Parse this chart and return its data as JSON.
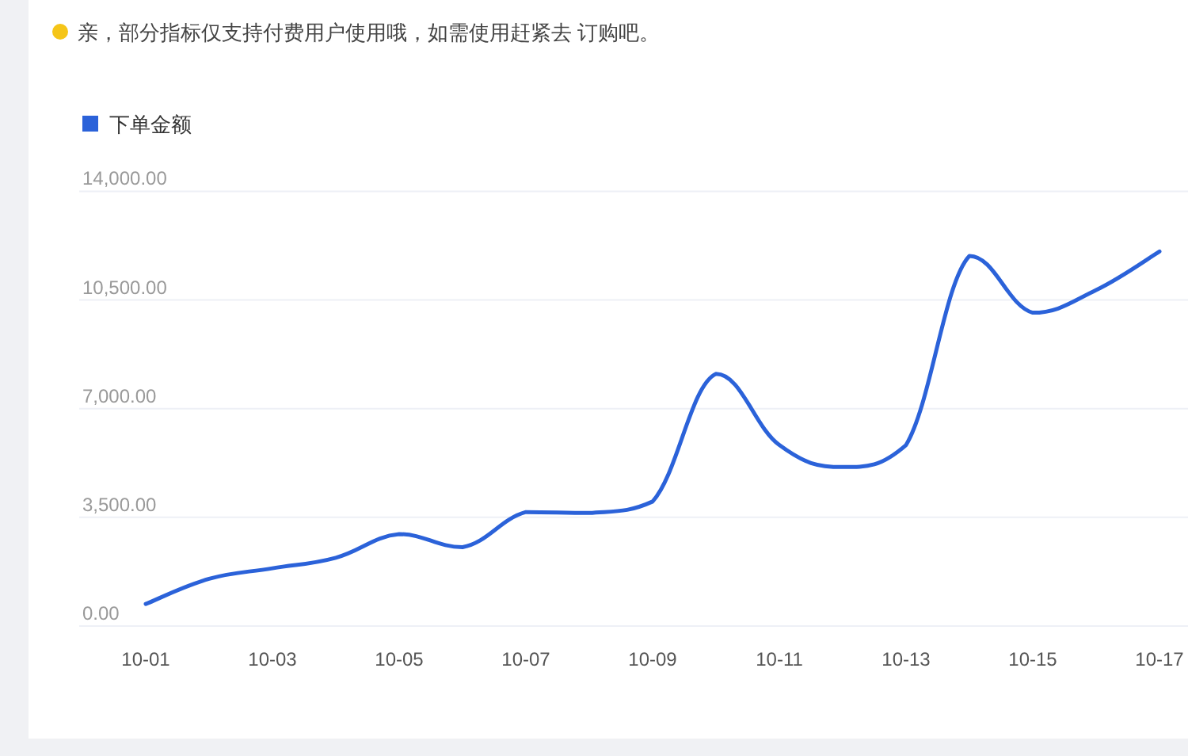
{
  "chart_data": {
    "type": "line",
    "annotations": [
      "亲，部分指标仅支持付费用户使用哦，如需使用赶紧去 订购吧。"
    ],
    "categories": [
      "10-01",
      null,
      "10-03",
      null,
      "10-05",
      null,
      "10-07",
      null,
      "10-09",
      null,
      "10-11",
      null,
      "10-13",
      null,
      "10-15",
      null,
      "10-17"
    ],
    "series": [
      {
        "name": "下单金额",
        "color": "#2b62d9",
        "values": [
          710,
          1520,
          1860,
          2200,
          2960,
          2540,
          3670,
          3640,
          4010,
          8120,
          5830,
          5120,
          5830,
          11920,
          10090,
          10820,
          12060
        ]
      }
    ],
    "ylim": [
      0,
      14000
    ],
    "yticks": [
      {
        "value": 0,
        "label": "0.00"
      },
      {
        "value": 3500,
        "label": "3,500.00"
      },
      {
        "value": 7000,
        "label": "7,000.00"
      },
      {
        "value": 10500,
        "label": "10,500.00"
      },
      {
        "value": 14000,
        "label": "14,000.00"
      }
    ],
    "grid": "y",
    "legend": "top left",
    "marker": "none",
    "line_style": "solid"
  }
}
